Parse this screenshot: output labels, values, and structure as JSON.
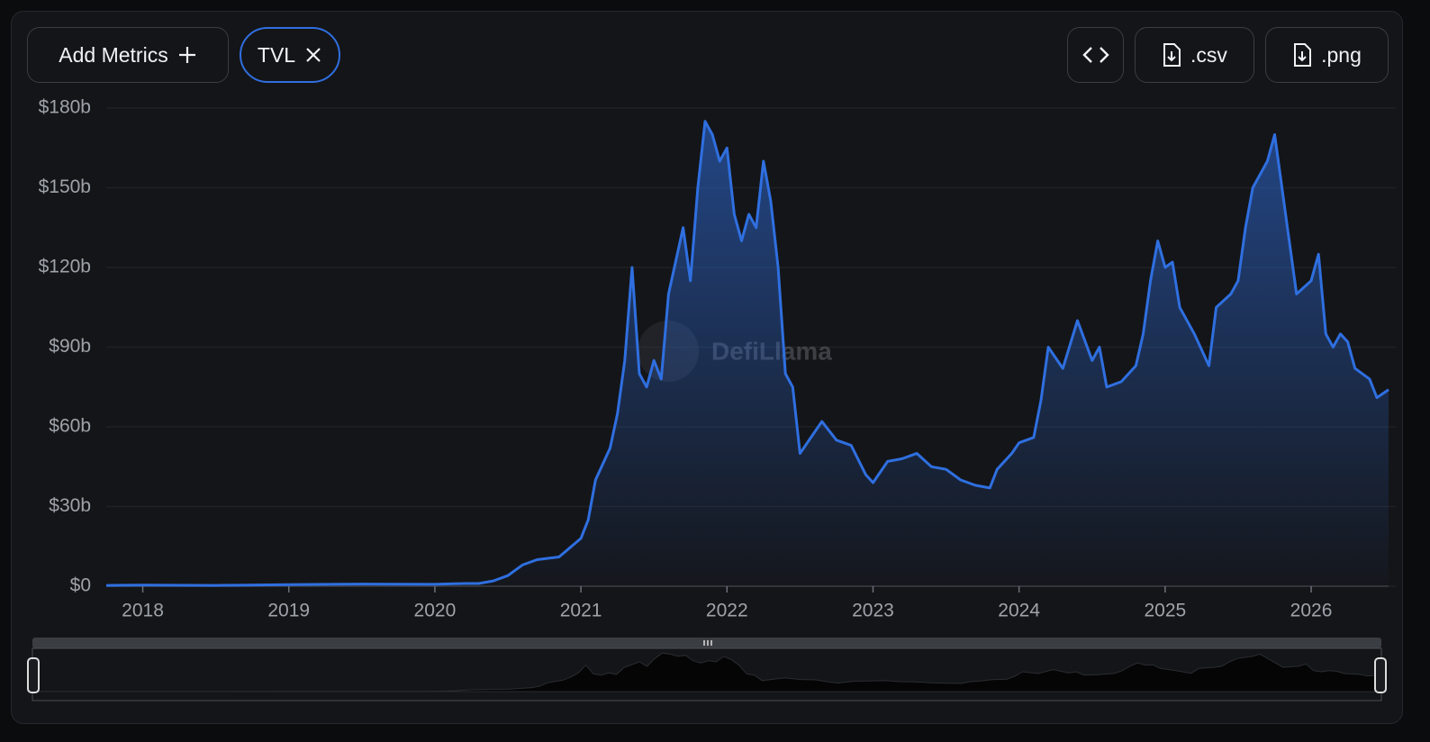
{
  "toolbar": {
    "add_metrics": "Add Metrics",
    "metric_chip": "TVL",
    "csv": ".csv",
    "png": ".png"
  },
  "watermark": "DefiLlama",
  "chart_data": {
    "type": "area",
    "x": [
      2017.75,
      2018.0,
      2018.5,
      2019.0,
      2019.5,
      2020.0,
      2020.2,
      2020.3,
      2020.4,
      2020.5,
      2020.6,
      2020.7,
      2020.85,
      2021.0,
      2021.05,
      2021.1,
      2021.2,
      2021.25,
      2021.3,
      2021.35,
      2021.4,
      2021.45,
      2021.5,
      2021.55,
      2021.6,
      2021.7,
      2021.75,
      2021.8,
      2021.85,
      2021.9,
      2021.95,
      2022.0,
      2022.05,
      2022.1,
      2022.15,
      2022.2,
      2022.25,
      2022.3,
      2022.35,
      2022.4,
      2022.45,
      2022.5,
      2022.6,
      2022.65,
      2022.75,
      2022.85,
      2022.95,
      2023.0,
      2023.1,
      2023.2,
      2023.3,
      2023.4,
      2023.5,
      2023.6,
      2023.7,
      2023.8,
      2023.85,
      2023.95,
      2024.0,
      2024.1,
      2024.15,
      2024.2,
      2024.3,
      2024.4,
      2024.5,
      2024.55,
      2024.6,
      2024.7,
      2024.8,
      2024.85,
      2024.9,
      2024.95,
      2025.0,
      2025.05,
      2025.1,
      2025.2,
      2025.3,
      2025.35,
      2025.45,
      2025.5,
      2025.55,
      2025.6,
      2025.7,
      2025.75,
      2025.8,
      2025.85,
      2025.9,
      2026.0,
      2026.05,
      2026.1,
      2026.15,
      2026.2,
      2026.25,
      2026.3,
      2026.4,
      2026.45,
      2026.53
    ],
    "series": [
      {
        "name": "TVL",
        "color": "#2f6fe0",
        "values": [
          0.3,
          0.4,
          0.3,
          0.6,
          0.8,
          0.7,
          1.0,
          1,
          2,
          4,
          8,
          10,
          11,
          18,
          25,
          40,
          52,
          65,
          85,
          120,
          80,
          75,
          85,
          78,
          110,
          135,
          115,
          150,
          175,
          170,
          160,
          165,
          140,
          130,
          140,
          135,
          160,
          145,
          120,
          80,
          75,
          50,
          58,
          62,
          55,
          53,
          42,
          39,
          47,
          48,
          50,
          45,
          44,
          40,
          38,
          37,
          44,
          50,
          54,
          56,
          70,
          90,
          82,
          100,
          85,
          90,
          75,
          77,
          83,
          95,
          115,
          130,
          120,
          122,
          105,
          95,
          83,
          105,
          110,
          115,
          135,
          150,
          160,
          170,
          150,
          130,
          110,
          115,
          125,
          95,
          90,
          95,
          92,
          82,
          78,
          71,
          74
        ]
      }
    ],
    "xlim": [
      2017.75,
      2026.53
    ],
    "xticks": [
      2018,
      2019,
      2020,
      2021,
      2022,
      2023,
      2024,
      2025,
      2026
    ],
    "ylim": [
      0,
      180
    ],
    "yticks": [
      {
        "value": 0,
        "label": "$0"
      },
      {
        "value": 30,
        "label": "$30b"
      },
      {
        "value": 60,
        "label": "$60b"
      },
      {
        "value": 90,
        "label": "$90b"
      },
      {
        "value": 120,
        "label": "$120b"
      },
      {
        "value": 150,
        "label": "$150b"
      },
      {
        "value": 180,
        "label": "$180b"
      }
    ],
    "grid": true
  }
}
